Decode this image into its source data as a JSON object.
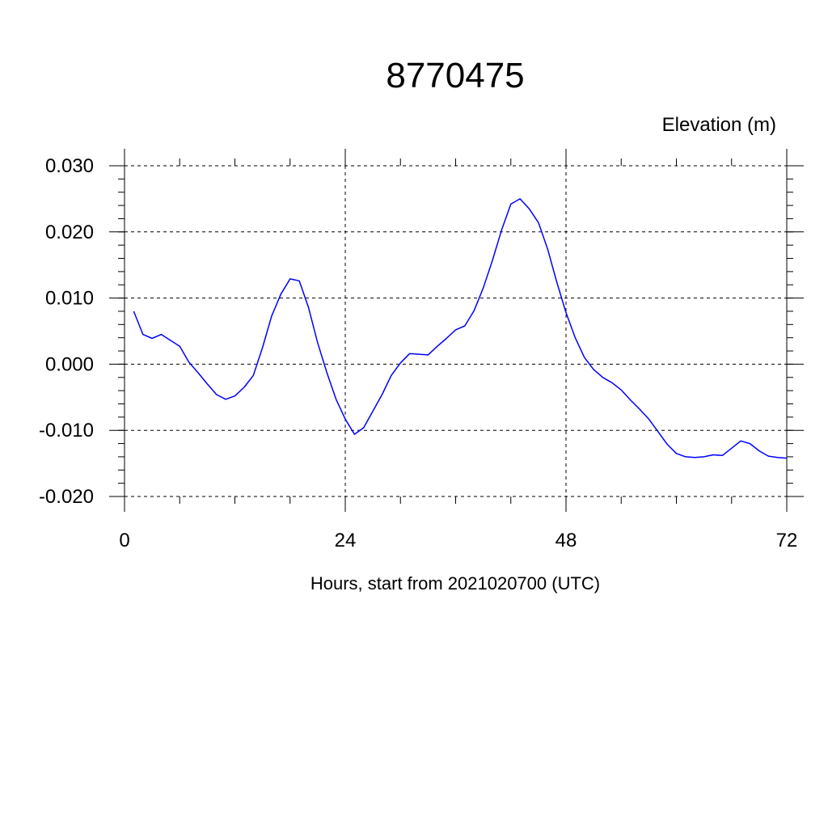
{
  "chart_data": {
    "type": "line",
    "title": "8770475",
    "unit_label": "Elevation (m)",
    "xlabel": "Hours, start from 2021020700 (UTC)",
    "xlim": [
      0,
      72
    ],
    "ylim": [
      -0.02,
      0.03
    ],
    "x_ticks": [
      0,
      24,
      48,
      72
    ],
    "x_tick_labels": [
      "0",
      "24",
      "48",
      "72"
    ],
    "y_ticks": [
      -0.02,
      -0.01,
      0.0,
      0.01,
      0.02,
      0.03
    ],
    "y_tick_labels": [
      "-0.020",
      "-0.010",
      "0.000",
      "0.010",
      "0.020",
      "0.030"
    ],
    "grid": true,
    "line_color": "#0000ff",
    "series": [
      {
        "x": [
          1,
          2,
          3,
          4,
          5,
          6,
          7,
          8,
          9,
          10,
          11,
          12,
          13,
          14,
          15,
          16,
          17,
          18,
          19,
          20,
          21,
          22,
          23,
          24,
          25,
          26,
          27,
          28,
          29,
          30,
          31,
          32,
          33,
          34,
          35,
          36,
          37,
          38,
          39,
          40,
          41,
          42,
          43,
          44,
          45,
          46,
          47,
          48,
          49,
          50,
          51,
          52,
          53,
          54,
          55,
          56,
          57,
          58,
          59,
          60,
          61,
          62,
          63,
          64,
          65,
          66,
          67,
          68,
          69,
          70,
          71,
          72
        ],
        "y": [
          0.008,
          0.0045,
          0.0039,
          0.0045,
          0.0036,
          0.0027,
          0.0003,
          -0.0013,
          -0.003,
          -0.0046,
          -0.0053,
          -0.0048,
          -0.0035,
          -0.0017,
          0.0025,
          0.0073,
          0.0106,
          0.0129,
          0.0126,
          0.0086,
          0.0032,
          -0.0013,
          -0.0053,
          -0.0083,
          -0.0106,
          -0.0096,
          -0.0071,
          -0.0046,
          -0.0017,
          0.0002,
          0.0016,
          0.0015,
          0.0014,
          0.0027,
          0.0039,
          0.0052,
          0.0058,
          0.0081,
          0.0115,
          0.0157,
          0.0203,
          0.0242,
          0.025,
          0.0235,
          0.0214,
          0.0174,
          0.0124,
          0.0078,
          0.004,
          0.001,
          -0.0008,
          -0.002,
          -0.0028,
          -0.0039,
          -0.0054,
          -0.0068,
          -0.0083,
          -0.0102,
          -0.0121,
          -0.0135,
          -0.014,
          -0.0141,
          -0.014,
          -0.0137,
          -0.0138,
          -0.0127,
          -0.0116,
          -0.012,
          -0.0131,
          -0.0139,
          -0.0141,
          -0.0142
        ]
      }
    ]
  }
}
